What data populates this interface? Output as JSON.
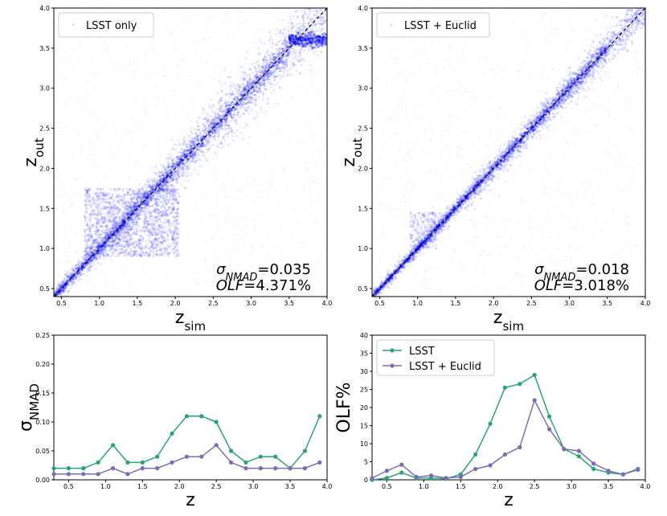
{
  "chart_data": [
    {
      "id": "p1",
      "type": "scatter",
      "legend": "LSST only",
      "legend_position": "upper-left",
      "xlabel_main": "z",
      "xlabel_sub": "sim",
      "ylabel_main": "z",
      "ylabel_sub": "out",
      "xlim": [
        0.4,
        4.0
      ],
      "ylim": [
        0.4,
        4.0
      ],
      "xticks": [
        "0.5",
        "1.0",
        "1.5",
        "2.0",
        "2.5",
        "3.0",
        "3.5",
        "4.0"
      ],
      "yticks": [
        "0.5",
        "1.0",
        "1.5",
        "2.0",
        "2.5",
        "3.0",
        "3.5",
        "4.0"
      ],
      "sigma_label": "σ",
      "sigma_sub": "NMAD",
      "sigma_value": "=0.035",
      "olf_label": "OLF",
      "olf_value": "=4.371%",
      "point_color": "#0000ff",
      "one_to_one_line": true
    },
    {
      "id": "p2",
      "type": "scatter",
      "legend": "LSST + Euclid",
      "legend_position": "upper-left",
      "xlabel_main": "z",
      "xlabel_sub": "sim",
      "ylabel_main": "z",
      "ylabel_sub": "out",
      "xlim": [
        0.4,
        4.0
      ],
      "ylim": [
        0.4,
        4.0
      ],
      "xticks": [
        "0.5",
        "1.0",
        "1.5",
        "2.0",
        "2.5",
        "3.0",
        "3.5",
        "4.0"
      ],
      "yticks": [
        "0.5",
        "1.0",
        "1.5",
        "2.0",
        "2.5",
        "3.0",
        "3.5",
        "4.0"
      ],
      "sigma_label": "σ",
      "sigma_sub": "NMAD",
      "sigma_value": "=0.018",
      "olf_label": "OLF",
      "olf_value": "=3.018%",
      "point_color": "#0000ff",
      "one_to_one_line": true
    },
    {
      "id": "p3",
      "type": "line",
      "xlabel": "z",
      "ylabel_main": "σ",
      "ylabel_sub": "NMAD",
      "xlim": [
        0.3,
        4.0
      ],
      "ylim": [
        0,
        0.25
      ],
      "xticks": [
        0.5,
        1.0,
        1.5,
        2.0,
        2.5,
        3.0,
        3.5,
        4.0
      ],
      "xtick_labels": [
        "0.5",
        "1.0",
        "1.5",
        "2.0",
        "2.5",
        "3.0",
        "3.5",
        "4.0"
      ],
      "yticks": [
        0,
        0.05,
        0.1,
        0.15,
        0.2,
        0.25
      ],
      "ytick_labels": [
        "0.00",
        "0.05",
        "0.10",
        "0.15",
        "0.20",
        "0.25"
      ],
      "x": [
        0.3,
        0.5,
        0.7,
        0.9,
        1.1,
        1.3,
        1.5,
        1.7,
        1.9,
        2.1,
        2.3,
        2.5,
        2.7,
        2.9,
        3.1,
        3.3,
        3.5,
        3.7,
        3.9
      ],
      "series": [
        {
          "name": "LSST",
          "color": "#2ca27a",
          "values": [
            0.02,
            0.02,
            0.02,
            0.03,
            0.06,
            0.03,
            0.03,
            0.04,
            0.08,
            0.11,
            0.11,
            0.1,
            0.05,
            0.03,
            0.04,
            0.04,
            0.02,
            0.05,
            0.11
          ]
        },
        {
          "name": "LSST + Euclid",
          "color": "#7b6db3",
          "values": [
            0.01,
            0.01,
            0.01,
            0.01,
            0.02,
            0.01,
            0.02,
            0.02,
            0.03,
            0.04,
            0.04,
            0.06,
            0.03,
            0.02,
            0.02,
            0.02,
            0.02,
            0.02,
            0.03
          ]
        }
      ]
    },
    {
      "id": "p4",
      "type": "line",
      "xlabel": "z",
      "ylabel": "OLF%",
      "legend_position": "upper-left",
      "xlim": [
        0.3,
        4.0
      ],
      "ylim": [
        0,
        40
      ],
      "xticks": [
        0.5,
        1.0,
        1.5,
        2.0,
        2.5,
        3.0,
        3.5,
        4.0
      ],
      "xtick_labels": [
        "0.5",
        "1.0",
        "1.5",
        "2.0",
        "2.5",
        "3.0",
        "3.5",
        "4.0"
      ],
      "yticks": [
        0,
        5,
        10,
        15,
        20,
        25,
        30,
        35,
        40
      ],
      "ytick_labels": [
        "0",
        "5",
        "10",
        "15",
        "20",
        "25",
        "30",
        "35",
        "40"
      ],
      "x": [
        0.3,
        0.5,
        0.7,
        0.9,
        1.1,
        1.3,
        1.5,
        1.7,
        1.9,
        2.1,
        2.3,
        2.5,
        2.7,
        2.9,
        3.1,
        3.3,
        3.5,
        3.7,
        3.9
      ],
      "series": [
        {
          "name": "LSST",
          "color": "#2ca27a",
          "values": [
            0.0,
            0.5,
            2.0,
            0.5,
            0.5,
            0.3,
            1.5,
            7.0,
            15.5,
            25.5,
            26.5,
            29.0,
            17.5,
            8.5,
            6.5,
            3.0,
            2.0,
            1.5,
            3.0
          ]
        },
        {
          "name": "LSST + Euclid",
          "color": "#7b6db3",
          "values": [
            0.5,
            2.5,
            4.2,
            0.8,
            1.2,
            0.5,
            0.8,
            3.0,
            4.0,
            7.0,
            9.0,
            22.0,
            14.0,
            8.5,
            8.0,
            4.5,
            2.5,
            1.5,
            2.8
          ]
        }
      ]
    }
  ]
}
